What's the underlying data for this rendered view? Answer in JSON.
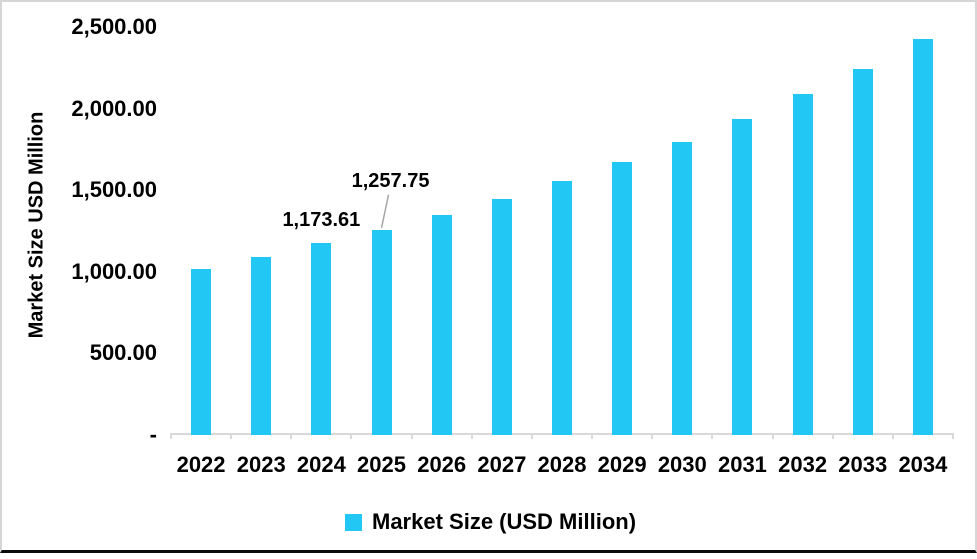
{
  "chart_data": {
    "type": "bar",
    "title": "",
    "ylabel": "Market Size USD Million",
    "xlabel": "",
    "ylim": [
      0,
      2500
    ],
    "grid": false,
    "legend_position": "bottom-center",
    "categories": [
      "2022",
      "2023",
      "2024",
      "2025",
      "2026",
      "2027",
      "2028",
      "2029",
      "2030",
      "2031",
      "2032",
      "2033",
      "2034"
    ],
    "series": [
      {
        "name": "Market Size (USD Million)",
        "values": [
          1015,
          1093,
          1173.61,
          1257.75,
          1350,
          1449,
          1557,
          1670,
          1798,
          1934,
          2092,
          2245,
          2424
        ]
      }
    ],
    "y_ticks": [
      {
        "value": 2500,
        "label": "2,500.00"
      },
      {
        "value": 2000,
        "label": "2,000.00"
      },
      {
        "value": 1500,
        "label": "1,500.00"
      },
      {
        "value": 1000,
        "label": "1,000.00"
      },
      {
        "value": 500,
        "label": "500.00"
      },
      {
        "value": 0,
        "label": "-"
      }
    ],
    "annotations": [
      {
        "category": "2024",
        "text": "1,173.61",
        "leader_line": false
      },
      {
        "category": "2025",
        "text": "1,257.75",
        "leader_line": true
      }
    ]
  },
  "legend": {
    "items": [
      {
        "label": "Market Size (USD Million)",
        "color": "#22C7F3",
        "swatch": "square"
      }
    ]
  },
  "colors": {
    "bar": "#22C7F3",
    "axis_line": "#D9D9D9",
    "leader_line": "#A6A6A6",
    "text": "#000000",
    "frame_border": "#D6D6D6",
    "bottom_rule": "#0A0A0A",
    "background": "#FFFFFF"
  }
}
